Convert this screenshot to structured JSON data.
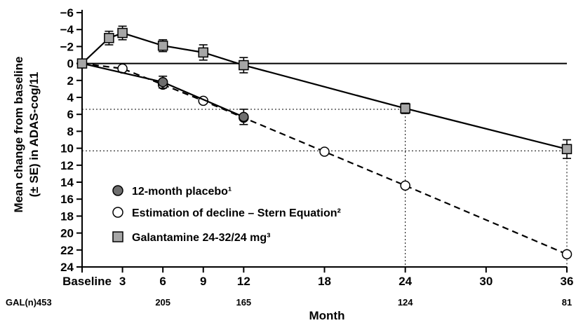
{
  "chart_data": {
    "type": "line",
    "ylabel_lines": [
      "Mean change from baseline",
      "(± SE) in ADAS-cog/11"
    ],
    "xlabel": "Month",
    "ylim": [
      -6,
      24
    ],
    "y_inverted": true,
    "yticks": [
      -6,
      -4,
      -2,
      0,
      2,
      4,
      6,
      8,
      10,
      12,
      14,
      16,
      18,
      20,
      22,
      24
    ],
    "ytick_labels": [
      "−6",
      "−4",
      "−2",
      "0",
      "2",
      "4",
      "6",
      "8",
      "10",
      "12",
      "14",
      "16",
      "18",
      "20",
      "22",
      "24"
    ],
    "xlim": [
      0,
      36
    ],
    "xticks": [
      {
        "value": 0,
        "label": "Baseline"
      },
      {
        "value": 3,
        "label": "3"
      },
      {
        "value": 6,
        "label": "6"
      },
      {
        "value": 9,
        "label": "9"
      },
      {
        "value": 12,
        "label": "12"
      },
      {
        "value": 18,
        "label": "18"
      },
      {
        "value": 24,
        "label": "24"
      },
      {
        "value": 30,
        "label": "30"
      },
      {
        "value": 36,
        "label": "36"
      }
    ],
    "n_row": {
      "label": "GAL(n)",
      "entries": [
        {
          "x": 0,
          "n": "453"
        },
        {
          "x": 6,
          "n": "205"
        },
        {
          "x": 12,
          "n": "165"
        },
        {
          "x": 24,
          "n": "124"
        },
        {
          "x": 36,
          "n": "81"
        }
      ]
    },
    "series": [
      {
        "name": "12-month placebo¹",
        "marker": "circle",
        "color": "#6e6e6e",
        "line": "solid",
        "points": [
          {
            "x": 0,
            "y": 0,
            "se": 0
          },
          {
            "x": 6,
            "y": 2.2,
            "se": 0.7
          },
          {
            "x": 12,
            "y": 6.3,
            "se": 0.9
          }
        ]
      },
      {
        "name": "Estimation of decline – Stern Equation²",
        "marker": "open-circle",
        "color": "#ffffff",
        "line": "dashed",
        "points": [
          {
            "x": 0,
            "y": 0
          },
          {
            "x": 3,
            "y": 0.6
          },
          {
            "x": 6,
            "y": 2.5
          },
          {
            "x": 9,
            "y": 4.4
          },
          {
            "x": 12,
            "y": 6.4
          },
          {
            "x": 18,
            "y": 10.4
          },
          {
            "x": 24,
            "y": 14.4
          },
          {
            "x": 36,
            "y": 22.5
          }
        ]
      },
      {
        "name": "Galantamine 24-32/24 mg³",
        "marker": "square",
        "color": "#a6a6a6",
        "line": "solid",
        "points": [
          {
            "x": 0,
            "y": 0,
            "se": 0
          },
          {
            "x": 2,
            "y": -3.0,
            "se": 0.8
          },
          {
            "x": 3,
            "y": -3.6,
            "se": 0.8
          },
          {
            "x": 6,
            "y": -2.1,
            "se": 0.7
          },
          {
            "x": 9,
            "y": -1.3,
            "se": 0.9
          },
          {
            "x": 12,
            "y": 0.2,
            "se": 0.9
          },
          {
            "x": 24,
            "y": 5.3,
            "se": 0.6
          },
          {
            "x": 36,
            "y": 10.1,
            "se": 1.1
          }
        ]
      }
    ],
    "reference_lines": [
      {
        "y": 5.4,
        "x_to": 24
      },
      {
        "y": 10.3,
        "x_to": 36
      }
    ],
    "legend_placement": "bottom-left",
    "grid": false
  }
}
